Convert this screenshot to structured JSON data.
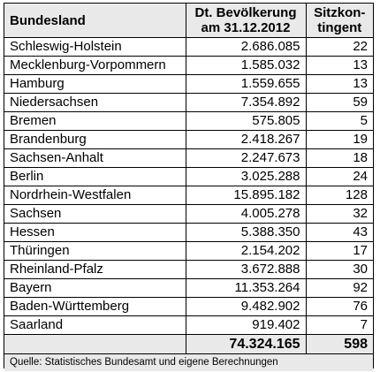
{
  "table": {
    "headers": {
      "state_label": "Bundesland",
      "population_line1": "Dt. Bevölkerung",
      "population_line2": "am 31.12.2012",
      "seats_line1": "Sitzkon-",
      "seats_line2": "tingent"
    },
    "rows": [
      {
        "state": "Schleswig-Holstein",
        "population": "2.686.085",
        "seats": "22"
      },
      {
        "state": "Mecklenburg-Vorpommern",
        "population": "1.585.032",
        "seats": "13"
      },
      {
        "state": "Hamburg",
        "population": "1.559.655",
        "seats": "13"
      },
      {
        "state": "Niedersachsen",
        "population": "7.354.892",
        "seats": "59"
      },
      {
        "state": "Bremen",
        "population": "575.805",
        "seats": "5"
      },
      {
        "state": "Brandenburg",
        "population": "2.418.267",
        "seats": "19"
      },
      {
        "state": "Sachsen-Anhalt",
        "population": "2.247.673",
        "seats": "18"
      },
      {
        "state": "Berlin",
        "population": "3.025.288",
        "seats": "24"
      },
      {
        "state": "Nordrhein-Westfalen",
        "population": "15.895.182",
        "seats": "128"
      },
      {
        "state": "Sachsen",
        "population": "4.005.278",
        "seats": "32"
      },
      {
        "state": "Hessen",
        "population": "5.388.350",
        "seats": "43"
      },
      {
        "state": "Thüringen",
        "population": "2.154.202",
        "seats": "17"
      },
      {
        "state": "Rheinland-Pfalz",
        "population": "3.672.888",
        "seats": "30"
      },
      {
        "state": "Bayern",
        "population": "11.353.264",
        "seats": "92"
      },
      {
        "state": "Baden-Württemberg",
        "population": "9.482.902",
        "seats": "76"
      },
      {
        "state": "Saarland",
        "population": "919.402",
        "seats": "7"
      }
    ],
    "total": {
      "label": "",
      "population": "74.324.165",
      "seats": "598"
    },
    "source": "Quelle: Statistisches Bundesamt und eigene Berechnungen"
  }
}
